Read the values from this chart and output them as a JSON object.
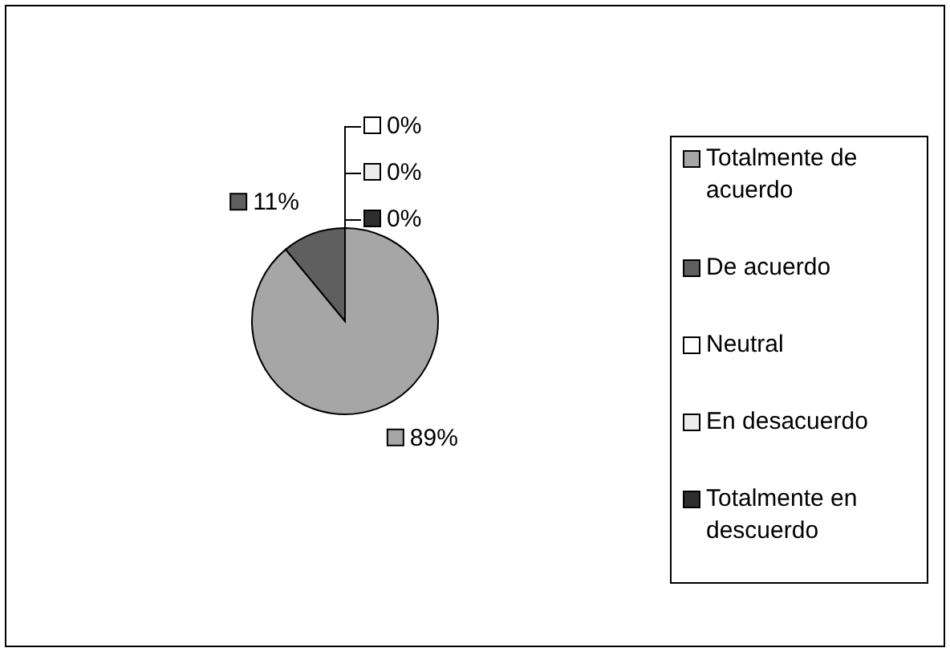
{
  "chart_data": {
    "type": "pie",
    "categories": [
      "Totalmente de acuerdo",
      "De acuerdo",
      "Neutral",
      "En desacuerdo",
      "Totalmente en descuerdo"
    ],
    "values": [
      89,
      11,
      0,
      0,
      0
    ],
    "colors": [
      "#a6a6a6",
      "#5f5f5f",
      "#ffffff",
      "#ececec",
      "#2e2e2e"
    ],
    "value_labels": [
      "89%",
      "11%",
      "0%",
      "0%",
      "0%"
    ],
    "legend": "right"
  }
}
